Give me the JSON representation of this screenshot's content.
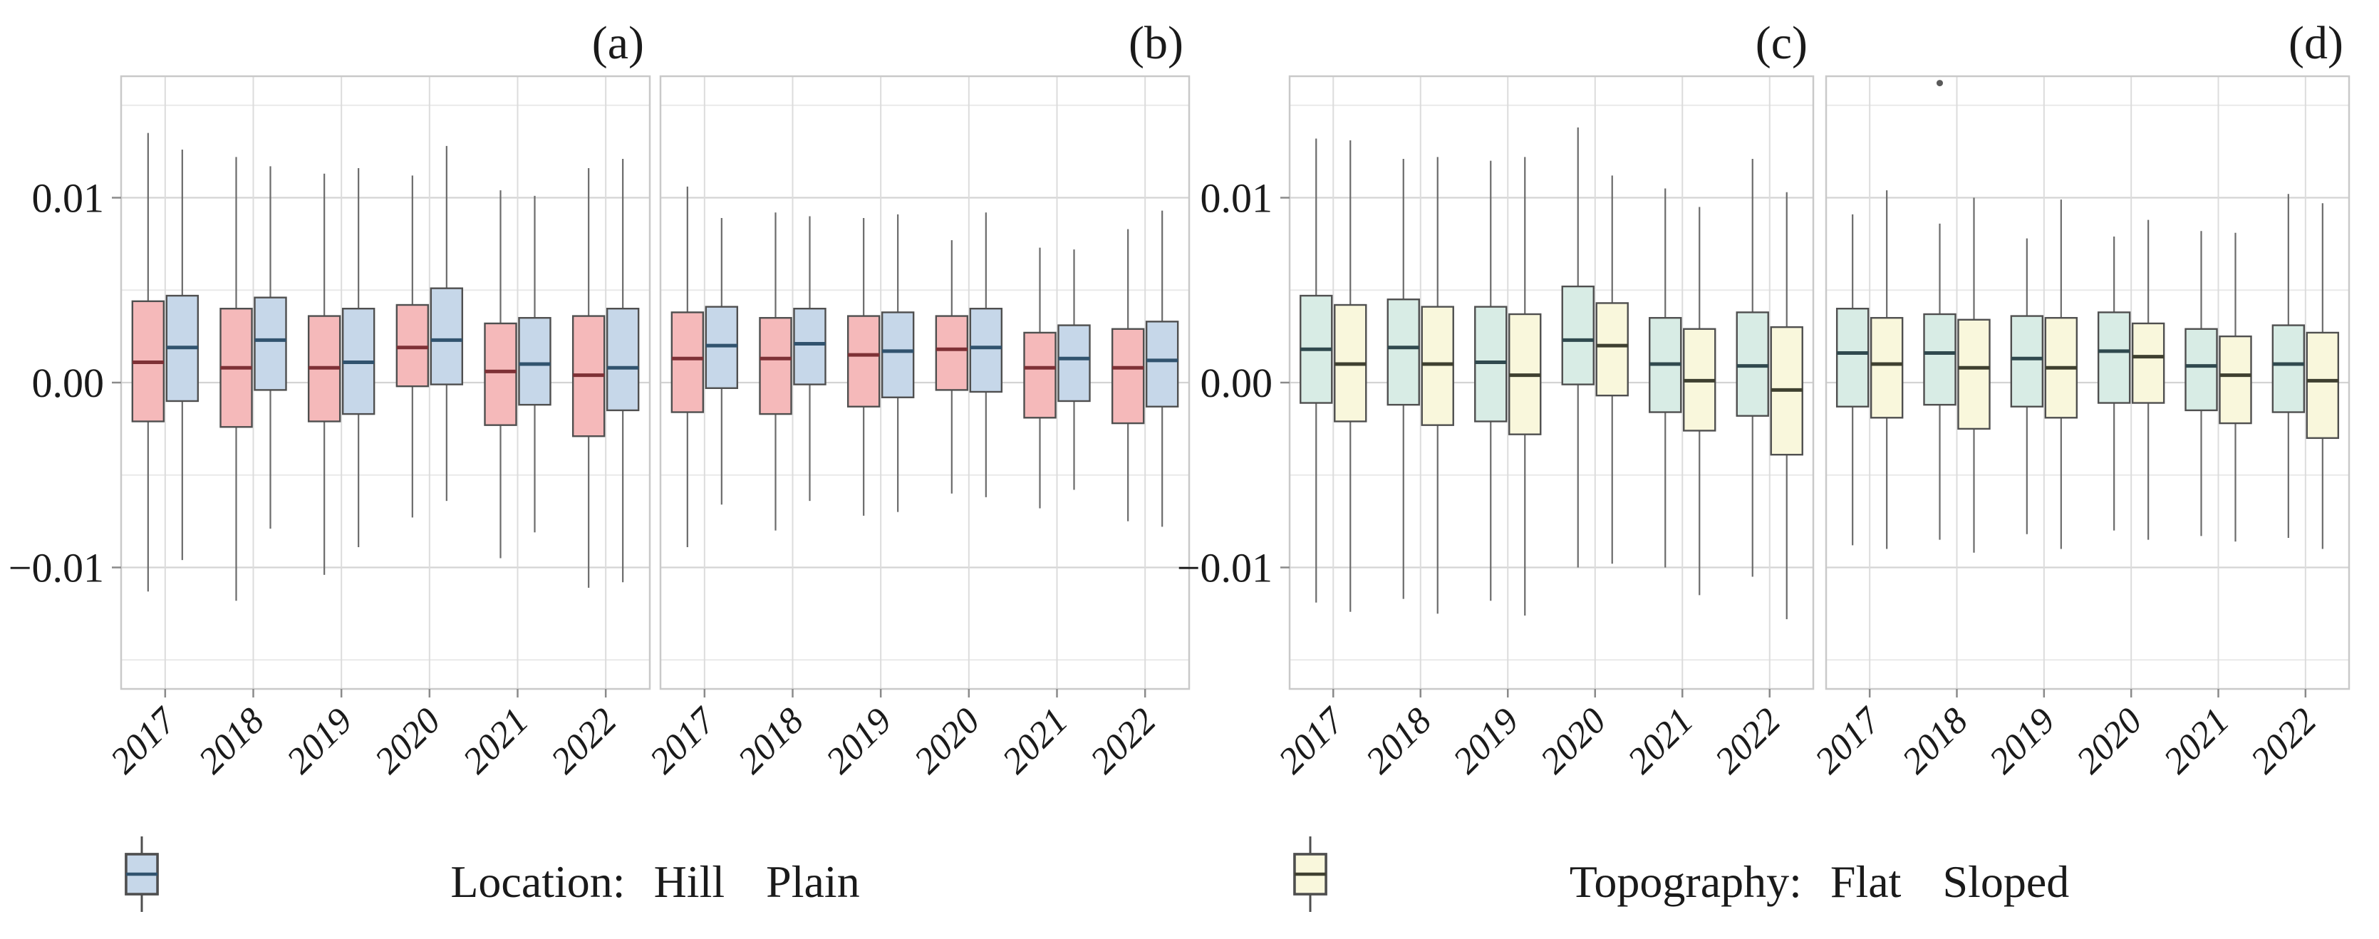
{
  "chart_data": {
    "type": "grouped_boxplot",
    "title": "",
    "x_categories": [
      "2017",
      "2018",
      "2019",
      "2020",
      "2021",
      "2022"
    ],
    "y_axis": {
      "tick_labels": [
        "0.01",
        "0.00",
        "−0.01"
      ],
      "tick_values": [
        0.01,
        0.0,
        -0.01
      ],
      "minor_gridline_values": [
        0.015,
        0.005,
        -0.005,
        -0.015
      ],
      "ylim": [
        -0.0166,
        0.0166
      ],
      "grid": true
    },
    "box_stats_format": [
      "whisker_low",
      "q1",
      "median",
      "q3",
      "whisker_high"
    ],
    "panels": [
      {
        "label": "(a)",
        "group_by": "Location",
        "has_y_tick_labels": true,
        "series": [
          {
            "name": "Hill",
            "color_key": "hill",
            "values": [
              [
                -0.0113,
                -0.0021,
                0.0011,
                0.0044,
                0.0135
              ],
              [
                -0.0118,
                -0.0024,
                0.0008,
                0.004,
                0.0122
              ],
              [
                -0.0104,
                -0.0021,
                0.0008,
                0.0036,
                0.0113
              ],
              [
                -0.0073,
                -0.0002,
                0.0019,
                0.0042,
                0.0112
              ],
              [
                -0.0095,
                -0.0023,
                0.0006,
                0.0032,
                0.0104
              ],
              [
                -0.0111,
                -0.0029,
                0.0004,
                0.0036,
                0.0116
              ]
            ]
          },
          {
            "name": "Plain",
            "color_key": "plain",
            "values": [
              [
                -0.0096,
                -0.001,
                0.0019,
                0.0047,
                0.0126
              ],
              [
                -0.0079,
                -0.0004,
                0.0023,
                0.0046,
                0.0117
              ],
              [
                -0.0089,
                -0.0017,
                0.0011,
                0.004,
                0.0116
              ],
              [
                -0.0064,
                -0.0001,
                0.0023,
                0.0051,
                0.0128
              ],
              [
                -0.0081,
                -0.0012,
                0.001,
                0.0035,
                0.0101
              ],
              [
                -0.0108,
                -0.0015,
                0.0008,
                0.004,
                0.0121
              ]
            ]
          }
        ]
      },
      {
        "label": "(b)",
        "group_by": "Location",
        "has_y_tick_labels": false,
        "series": [
          {
            "name": "Hill",
            "color_key": "hill",
            "values": [
              [
                -0.0089,
                -0.0016,
                0.0013,
                0.0038,
                0.0106
              ],
              [
                -0.008,
                -0.0017,
                0.0013,
                0.0035,
                0.0092
              ],
              [
                -0.0072,
                -0.0013,
                0.0015,
                0.0036,
                0.0089
              ],
              [
                -0.006,
                -0.0004,
                0.0018,
                0.0036,
                0.0077
              ],
              [
                -0.0068,
                -0.0019,
                0.0008,
                0.0027,
                0.0073
              ],
              [
                -0.0075,
                -0.0022,
                0.0008,
                0.0029,
                0.0083
              ]
            ]
          },
          {
            "name": "Plain",
            "color_key": "plain",
            "values": [
              [
                -0.0066,
                -0.0003,
                0.002,
                0.0041,
                0.0089
              ],
              [
                -0.0064,
                -0.0001,
                0.0021,
                0.004,
                0.009
              ],
              [
                -0.007,
                -0.0008,
                0.0017,
                0.0038,
                0.0091
              ],
              [
                -0.0062,
                -0.0005,
                0.0019,
                0.004,
                0.0092
              ],
              [
                -0.0058,
                -0.001,
                0.0013,
                0.0031,
                0.0072
              ],
              [
                -0.0078,
                -0.0013,
                0.0012,
                0.0033,
                0.0093
              ]
            ]
          }
        ]
      },
      {
        "label": "(c)",
        "group_by": "Topography",
        "has_y_tick_labels": true,
        "series": [
          {
            "name": "Flat",
            "color_key": "flat",
            "values": [
              [
                -0.0119,
                -0.0011,
                0.0018,
                0.0047,
                0.0132
              ],
              [
                -0.0117,
                -0.0012,
                0.0019,
                0.0045,
                0.0121
              ],
              [
                -0.0118,
                -0.0021,
                0.0011,
                0.0041,
                0.012
              ],
              [
                -0.01,
                -0.0001,
                0.0023,
                0.0052,
                0.0138
              ],
              [
                -0.01,
                -0.0016,
                0.001,
                0.0035,
                0.0105
              ],
              [
                -0.0105,
                -0.0018,
                0.0009,
                0.0038,
                0.0121
              ]
            ]
          },
          {
            "name": "Sloped",
            "color_key": "sloped",
            "values": [
              [
                -0.0124,
                -0.0021,
                0.001,
                0.0042,
                0.0131
              ],
              [
                -0.0125,
                -0.0023,
                0.001,
                0.0041,
                0.0122
              ],
              [
                -0.0126,
                -0.0028,
                0.0004,
                0.0037,
                0.0122
              ],
              [
                -0.0098,
                -0.0007,
                0.002,
                0.0043,
                0.0112
              ],
              [
                -0.0115,
                -0.0026,
                0.0001,
                0.0029,
                0.0095
              ],
              [
                -0.0128,
                -0.0039,
                -0.0004,
                0.003,
                0.0103
              ]
            ]
          }
        ]
      },
      {
        "label": "(d)",
        "group_by": "Topography",
        "has_y_tick_labels": false,
        "outliers": [
          {
            "year": "2018",
            "series": "Flat",
            "value": 0.0162
          }
        ],
        "series": [
          {
            "name": "Flat",
            "color_key": "flat",
            "values": [
              [
                -0.0088,
                -0.0013,
                0.0016,
                0.004,
                0.0091
              ],
              [
                -0.0085,
                -0.0012,
                0.0016,
                0.0037,
                0.0086
              ],
              [
                -0.0082,
                -0.0013,
                0.0013,
                0.0036,
                0.0078
              ],
              [
                -0.008,
                -0.0011,
                0.0017,
                0.0038,
                0.0079
              ],
              [
                -0.0083,
                -0.0015,
                0.0009,
                0.0029,
                0.0082
              ],
              [
                -0.0084,
                -0.0016,
                0.001,
                0.0031,
                0.0102
              ]
            ]
          },
          {
            "name": "Sloped",
            "color_key": "sloped",
            "values": [
              [
                -0.009,
                -0.0019,
                0.001,
                0.0035,
                0.0104
              ],
              [
                -0.0092,
                -0.0025,
                0.0008,
                0.0034,
                0.01
              ],
              [
                -0.009,
                -0.0019,
                0.0008,
                0.0035,
                0.0099
              ],
              [
                -0.0085,
                -0.0011,
                0.0014,
                0.0032,
                0.0088
              ],
              [
                -0.0086,
                -0.0022,
                0.0004,
                0.0025,
                0.0081
              ],
              [
                -0.009,
                -0.003,
                0.0001,
                0.0027,
                0.0097
              ]
            ]
          }
        ]
      }
    ],
    "legends": [
      {
        "title": "Location:",
        "items": [
          {
            "label": "Hill",
            "color_key": "hill"
          },
          {
            "label": "Plain",
            "color_key": "plain"
          }
        ]
      },
      {
        "title": "Topography:",
        "items": [
          {
            "label": "Flat",
            "color_key": "flat"
          },
          {
            "label": "Sloped",
            "color_key": "sloped"
          }
        ]
      }
    ],
    "colors": {
      "hill": {
        "fill": "#f5b9ba",
        "median": "#7e3136"
      },
      "plain": {
        "fill": "#c6d7e9",
        "median": "#31536e"
      },
      "flat": {
        "fill": "#d8ece5",
        "median": "#30494e"
      },
      "sloped": {
        "fill": "#f9f7dc",
        "median": "#3f4030"
      },
      "box_border": "#4f4f4f",
      "whisker": "#6b6b6b",
      "outlier": "#5a5a5a",
      "grid_major": "#d4d4d4",
      "grid_minor": "#e9e9e9",
      "grid_vertical": "#dcdcdc",
      "panel_border": "#c9c9c9",
      "tick": "#8a8a8a",
      "text": "#1a1a1a"
    }
  },
  "legend_left": {
    "title": "Location:",
    "item1": "Hill",
    "item2": "Plain"
  },
  "legend_right": {
    "title": "Topography:",
    "item1": "Flat",
    "item2": "Sloped"
  }
}
